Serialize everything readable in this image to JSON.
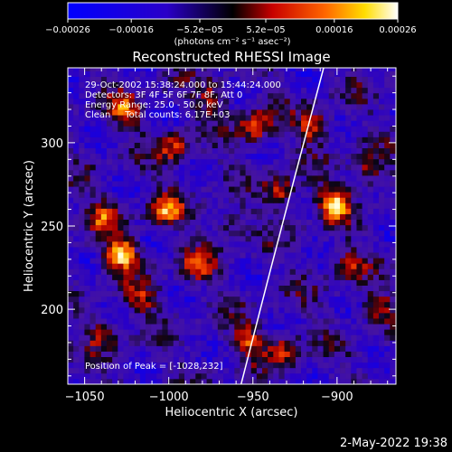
{
  "chart_data": {
    "type": "heatmap",
    "title": "Reconstructed RHESSI Image",
    "xlabel": "Heliocentric X (arcsec)",
    "ylabel": "Heliocentric Y (arcsec)",
    "xlim": [
      -1060,
      -865
    ],
    "ylim": [
      155,
      345
    ],
    "x_ticks": [
      -1050,
      -1000,
      -950,
      -900
    ],
    "x_tick_labels": [
      "−1050",
      "−1000",
      "−950",
      "−900"
    ],
    "y_ticks": [
      200,
      250,
      300
    ],
    "y_tick_labels": [
      "200",
      "250",
      "300"
    ],
    "colorbar": {
      "ticks": [
        -0.00026,
        -0.00016,
        -5.2e-05,
        5.2e-05,
        0.00016,
        0.00026
      ],
      "tick_labels": [
        "−0.00026",
        "−0.00016",
        "−5.2e−05",
        "5.2e−05",
        "0.00016",
        "0.00026"
      ],
      "range": [
        -0.00026,
        0.00026
      ],
      "unit_label": "(photons cm⁻² s⁻¹ asec⁻²)"
    },
    "info_lines": [
      "29-Oct-2002 15:38:24.000 to 15:44:24.000",
      "Detectors: 3F 4F 5F 6F 7F 8F, Att 0",
      "Energy Range: 25.0 - 50.0 keV",
      "Clean     Total counts: 6.17E+03"
    ],
    "peak_label": "Position of Peak = [-1028,232]",
    "peak_position": [
      -1028,
      232
    ],
    "limb_curve": [
      [
        -957,
        155
      ],
      [
        -940,
        222
      ],
      [
        -925,
        280
      ],
      [
        -908,
        345
      ]
    ],
    "hot_spots": [
      {
        "x": -1030,
        "y": 232,
        "amplitude": 1.0
      },
      {
        "x": -1040,
        "y": 255,
        "amplitude": 0.55
      },
      {
        "x": -1003,
        "y": 258,
        "amplitude": 0.7
      },
      {
        "x": -1028,
        "y": 318,
        "amplitude": 0.6
      },
      {
        "x": -998,
        "y": 295,
        "amplitude": 0.6
      },
      {
        "x": -985,
        "y": 225,
        "amplitude": 0.55
      },
      {
        "x": -950,
        "y": 308,
        "amplitude": 0.7
      },
      {
        "x": -935,
        "y": 268,
        "amplitude": 0.6
      },
      {
        "x": -915,
        "y": 308,
        "amplitude": 0.65
      },
      {
        "x": -903,
        "y": 262,
        "amplitude": 0.9
      },
      {
        "x": -882,
        "y": 282,
        "amplitude": 0.55
      },
      {
        "x": -955,
        "y": 180,
        "amplitude": 0.6
      },
      {
        "x": -933,
        "y": 175,
        "amplitude": 0.55
      },
      {
        "x": -895,
        "y": 225,
        "amplitude": 0.5
      },
      {
        "x": -1040,
        "y": 185,
        "amplitude": 0.5
      },
      {
        "x": -1018,
        "y": 205,
        "amplitude": 0.45
      },
      {
        "x": -975,
        "y": 325,
        "amplitude": 0.45
      },
      {
        "x": -878,
        "y": 200,
        "amplitude": 0.45
      },
      {
        "x": -965,
        "y": 250,
        "amplitude": 0.4
      }
    ],
    "grid": false,
    "legend": "none"
  },
  "footer": {
    "timestamp": "2-May-2022 19:38"
  }
}
